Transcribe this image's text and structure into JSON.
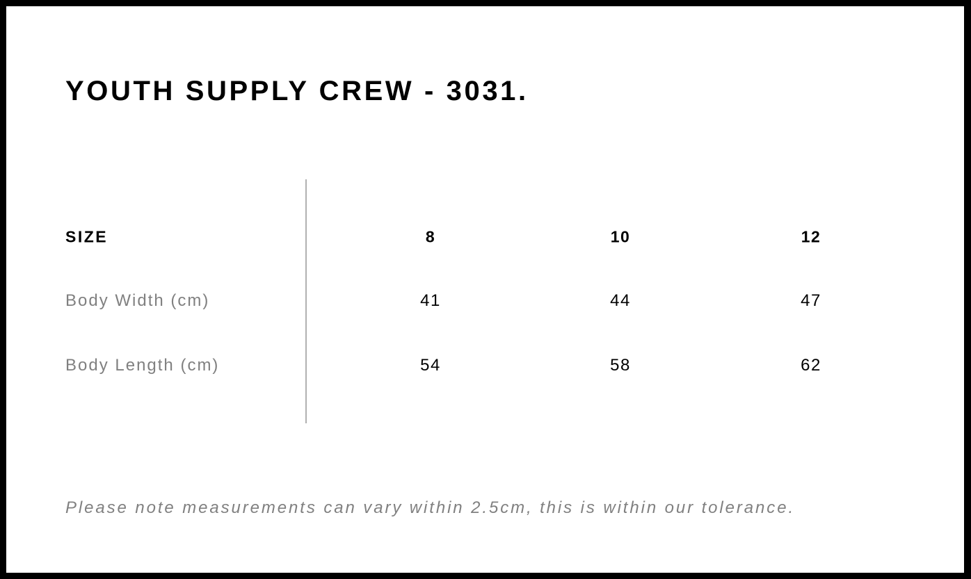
{
  "title": "YOUTH SUPPLY CREW - 3031.",
  "table": {
    "header_label": "SIZE",
    "sizes": [
      "8",
      "10",
      "12"
    ],
    "rows": [
      {
        "label": "Body Width (cm)",
        "values": [
          "41",
          "44",
          "47"
        ]
      },
      {
        "label": "Body Length (cm)",
        "values": [
          "54",
          "58",
          "62"
        ]
      }
    ]
  },
  "note": "Please note measurements can vary within 2.5cm, this is within our tolerance."
}
